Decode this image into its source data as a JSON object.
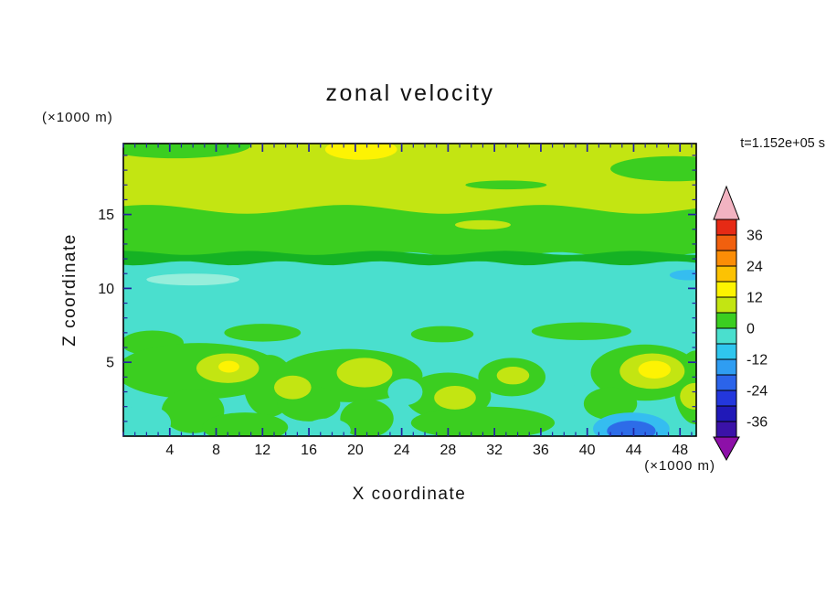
{
  "chart_data": {
    "type": "heatmap",
    "title": "zonal velocity",
    "time_annotation": "t=1.152e+05 s",
    "xlabel": "X coordinate",
    "ylabel": "Z coordinate",
    "x_axis_units": "(×1000 m)",
    "z_axis_units": "(×1000 m)",
    "xlim": [
      0,
      49.4
    ],
    "ylim": [
      0,
      19.8
    ],
    "x_major_ticks": [
      4,
      8,
      12,
      16,
      20,
      24,
      28,
      32,
      36,
      40,
      44,
      48
    ],
    "x_minor_tick_step": 1,
    "z_major_ticks": [
      5,
      10,
      15
    ],
    "z_minor_tick_step": 1,
    "grid": false,
    "legend_position": "colorbar-right",
    "contour_interval": 6,
    "contour_levels": [
      -42,
      -36,
      -30,
      -24,
      -18,
      -12,
      -6,
      0,
      6,
      12,
      18,
      24,
      30,
      36,
      42
    ],
    "colorbar": {
      "labels": [
        "36",
        "24",
        "12",
        "0",
        "-12",
        "-24",
        "-36"
      ],
      "top_arrow_color": "#f2b3c1",
      "bottom_arrow_color": "#8d10a8",
      "cells_top_to_bottom": [
        {
          "range": "36..42",
          "color": "#e62a15"
        },
        {
          "range": "30..36",
          "color": "#f1600e"
        },
        {
          "range": "24..30",
          "color": "#fb8d06"
        },
        {
          "range": "18..24",
          "color": "#fcc203"
        },
        {
          "range": "12..18",
          "color": "#fdf300"
        },
        {
          "range": "6..12",
          "color": "#c3e512"
        },
        {
          "range": "0..6",
          "color": "#3bce20"
        },
        {
          "range": "-6..0",
          "color": "#4adfce"
        },
        {
          "range": "-12..-6",
          "color": "#2fc6ee"
        },
        {
          "range": "-18..-12",
          "color": "#2f9df2"
        },
        {
          "range": "-24..-18",
          "color": "#2b64ea"
        },
        {
          "range": "-30..-24",
          "color": "#2337dd"
        },
        {
          "range": "-36..-30",
          "color": "#2019b8"
        },
        {
          "range": "-42..-36",
          "color": "#3a12a8"
        }
      ]
    },
    "palette": {
      "cyan": "#4adfce",
      "paleCyan": "#96eedb",
      "yellowGreen": "#c3e512",
      "green": "#3bce20",
      "darkGreen": "#15b224",
      "yellow": "#fdf303",
      "skyBlue": "#35bdf0",
      "blue": "#2d6ce8"
    },
    "field_summary": [
      {
        "zone": "z = 15 to 19.8 (x1000 m)",
        "value_range": "6 to 12 (yellow-green), small yellow maximum 12-18 near x=20 at top"
      },
      {
        "zone": "z = 12 to 15",
        "value_range": "0 to 6 (green band across full width)"
      },
      {
        "zone": "z = 8 to 12",
        "value_range": "-6 to 0 (uniform turquoise layer)"
      },
      {
        "zone": "z = 0 to 8",
        "value_range": "mixed -6 to 12: green cells with yellow-green/yellow cores near x=9,14,21,28,34,46; turquoise gaps; local minimum to about -18 (blue) near x=44 at the surface"
      }
    ],
    "field_shapes": [
      {
        "kind": "rect",
        "x0": 0,
        "x1": 49.4,
        "z0": 0,
        "z1": 19.8,
        "color": "cyan"
      },
      {
        "kind": "rect",
        "x0": 0,
        "x1": 49.4,
        "z0": 13.0,
        "z1": 19.8,
        "color": "yellowGreen"
      },
      {
        "kind": "band",
        "z0": 12.15,
        "z1": 15.35,
        "amp": 0.3,
        "wl": 17,
        "ph1": 0.8,
        "ph2": 2.4,
        "color": "green"
      },
      {
        "kind": "band",
        "z0": 11.7,
        "z1": 12.4,
        "amp": 0.14,
        "wl": 11,
        "ph1": 1.6,
        "ph2": 4.0,
        "color": "darkGreen"
      },
      {
        "kind": "ellipse",
        "cx": 4.5,
        "cz": 19.7,
        "rx": 6.5,
        "rz": 0.9,
        "color": "green"
      },
      {
        "kind": "ellipse",
        "cx": 47.5,
        "cz": 18.1,
        "rx": 5.5,
        "rz": 0.85,
        "color": "green"
      },
      {
        "kind": "ellipse",
        "cx": 33,
        "cz": 17.0,
        "rx": 3.5,
        "rz": 0.3,
        "color": "green"
      },
      {
        "kind": "ellipse",
        "cx": 20.5,
        "cz": 19.4,
        "rx": 3.1,
        "rz": 0.7,
        "color": "yellow"
      },
      {
        "kind": "ellipse",
        "cx": 31,
        "cz": 14.3,
        "rx": 2.4,
        "rz": 0.32,
        "color": "yellowGreen"
      },
      {
        "kind": "ellipse",
        "cx": 6,
        "cz": 10.6,
        "rx": 4,
        "rz": 0.4,
        "color": "paleCyan"
      },
      {
        "kind": "ellipse",
        "cx": 48.8,
        "cz": 10.9,
        "rx": 1.7,
        "rz": 0.35,
        "color": "skyBlue"
      },
      {
        "kind": "ellipse",
        "cx": 2.5,
        "cz": 6.3,
        "rx": 2.7,
        "rz": 0.85,
        "color": "green"
      },
      {
        "kind": "ellipse",
        "cx": 12,
        "cz": 7.0,
        "rx": 3.3,
        "rz": 0.6,
        "color": "green"
      },
      {
        "kind": "ellipse",
        "cx": 27.5,
        "cz": 6.9,
        "rx": 2.7,
        "rz": 0.55,
        "color": "green"
      },
      {
        "kind": "ellipse",
        "cx": 39.5,
        "cz": 7.1,
        "rx": 4.3,
        "rz": 0.6,
        "color": "green"
      },
      {
        "kind": "ellipse",
        "cx": 6.5,
        "cz": 4.4,
        "rx": 7.2,
        "rz": 1.9,
        "color": "green"
      },
      {
        "kind": "ellipse",
        "cx": 6,
        "cz": 1.7,
        "rx": 2.7,
        "rz": 1.5,
        "color": "green"
      },
      {
        "kind": "ellipse",
        "cx": 12.6,
        "cz": 3.4,
        "rx": 2.2,
        "rz": 2.1,
        "color": "green"
      },
      {
        "kind": "ellipse",
        "cx": 19.5,
        "cz": 4.1,
        "rx": 6.3,
        "rz": 1.8,
        "color": "green"
      },
      {
        "kind": "ellipse",
        "cx": 16,
        "cz": 2.2,
        "rx": 2.7,
        "rz": 1.2,
        "color": "green"
      },
      {
        "kind": "ellipse",
        "cx": 21,
        "cz": 1.2,
        "rx": 2.3,
        "rz": 1.3,
        "color": "green"
      },
      {
        "kind": "ellipse",
        "cx": 28,
        "cz": 2.7,
        "rx": 3.7,
        "rz": 1.6,
        "color": "green"
      },
      {
        "kind": "ellipse",
        "cx": 33.5,
        "cz": 4.0,
        "rx": 2.9,
        "rz": 1.3,
        "color": "green"
      },
      {
        "kind": "ellipse",
        "cx": 31,
        "cz": 0.9,
        "rx": 6.2,
        "rz": 1.1,
        "color": "green"
      },
      {
        "kind": "ellipse",
        "cx": 45,
        "cz": 4.3,
        "rx": 4.7,
        "rz": 1.9,
        "color": "green"
      },
      {
        "kind": "ellipse",
        "cx": 42,
        "cz": 2.2,
        "rx": 2.3,
        "rz": 1.1,
        "color": "green"
      },
      {
        "kind": "ellipse",
        "cx": 49.4,
        "cz": 3.3,
        "rx": 1.9,
        "rz": 2.5,
        "color": "green"
      },
      {
        "kind": "ellipse",
        "cx": 10.5,
        "cz": 0.6,
        "rx": 3.7,
        "rz": 1.0,
        "color": "green"
      },
      {
        "kind": "ellipse",
        "cx": 9,
        "cz": 4.6,
        "rx": 2.7,
        "rz": 1.0,
        "color": "yellowGreen"
      },
      {
        "kind": "ellipse",
        "cx": 14.6,
        "cz": 3.3,
        "rx": 1.6,
        "rz": 0.8,
        "color": "yellowGreen"
      },
      {
        "kind": "ellipse",
        "cx": 20.8,
        "cz": 4.3,
        "rx": 2.4,
        "rz": 1.0,
        "color": "yellowGreen"
      },
      {
        "kind": "ellipse",
        "cx": 28.6,
        "cz": 2.6,
        "rx": 1.8,
        "rz": 0.8,
        "color": "yellowGreen"
      },
      {
        "kind": "ellipse",
        "cx": 33.6,
        "cz": 4.1,
        "rx": 1.4,
        "rz": 0.6,
        "color": "yellowGreen"
      },
      {
        "kind": "ellipse",
        "cx": 45.6,
        "cz": 4.4,
        "rx": 2.8,
        "rz": 1.2,
        "color": "yellowGreen"
      },
      {
        "kind": "ellipse",
        "cx": 49.3,
        "cz": 2.7,
        "rx": 1.3,
        "rz": 0.9,
        "color": "yellowGreen"
      },
      {
        "kind": "ellipse",
        "cx": 9.1,
        "cz": 4.7,
        "rx": 0.9,
        "rz": 0.4,
        "color": "yellow"
      },
      {
        "kind": "ellipse",
        "cx": 45.8,
        "cz": 4.5,
        "rx": 1.4,
        "rz": 0.6,
        "color": "yellow"
      },
      {
        "kind": "ellipse",
        "cx": 24.3,
        "cz": 3.0,
        "rx": 1.5,
        "rz": 0.9,
        "color": "cyan"
      },
      {
        "kind": "ellipse",
        "cx": 37.6,
        "cz": 2.5,
        "rx": 2.0,
        "rz": 1.2,
        "color": "cyan"
      },
      {
        "kind": "ellipse",
        "cx": 1.8,
        "cz": 0.9,
        "rx": 2.3,
        "rz": 1.2,
        "color": "cyan"
      },
      {
        "kind": "ellipse",
        "cx": 17.6,
        "cz": 0.4,
        "rx": 2.0,
        "rz": 0.8,
        "color": "cyan"
      },
      {
        "kind": "ellipse",
        "cx": 43.8,
        "cz": 0.5,
        "rx": 3.3,
        "rz": 1.1,
        "color": "skyBlue"
      },
      {
        "kind": "ellipse",
        "cx": 43.8,
        "cz": 0.35,
        "rx": 2.1,
        "rz": 0.7,
        "color": "blue"
      }
    ]
  }
}
